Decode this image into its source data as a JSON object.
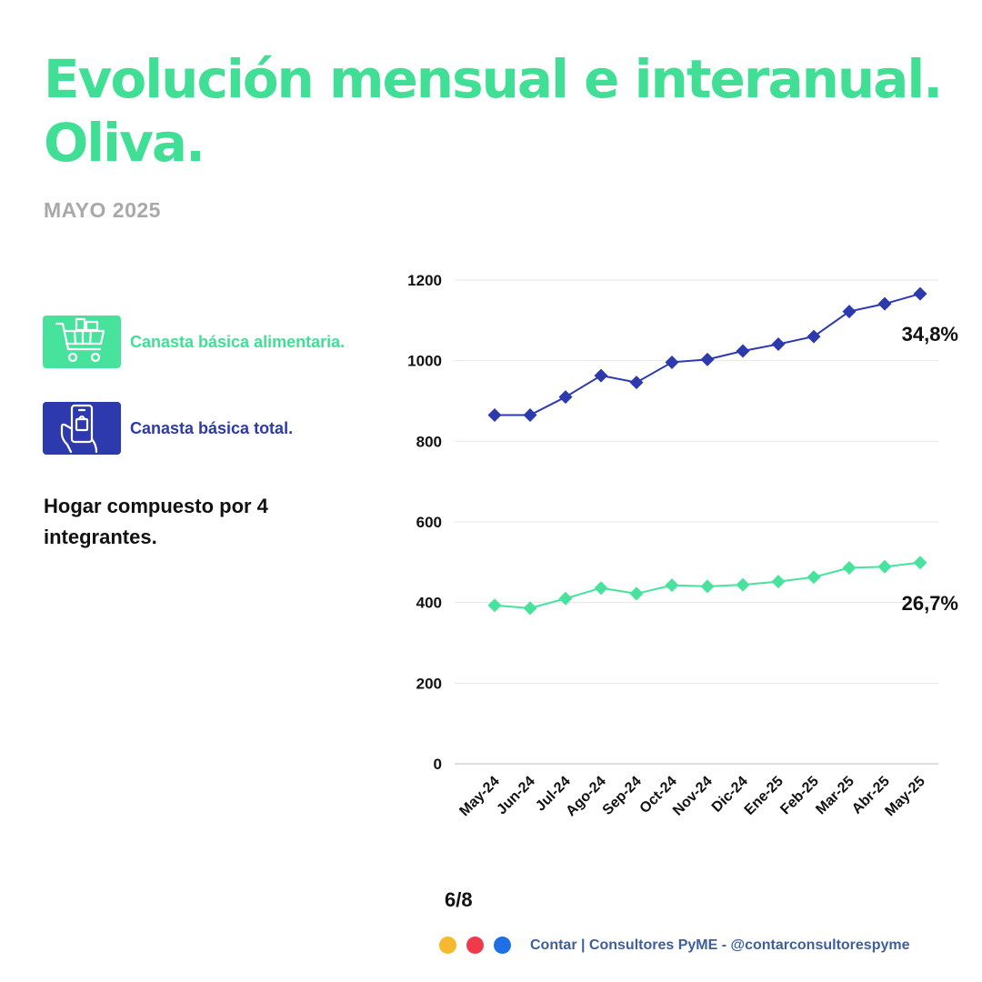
{
  "title": "Evolución mensual e interanual. Oliva.",
  "subtitle": "MAYO 2025",
  "legend": {
    "food_label": "Canasta básica alimentaria.",
    "food_color": "#47e39c",
    "food_icon": "shopping-cart-icon",
    "total_label": "Canasta básica total.",
    "total_color": "#2c3aad",
    "total_icon": "phone-shopping-bag-icon"
  },
  "note": "Hogar compuesto por 4 integrantes.",
  "page": "6/8",
  "footer": {
    "text": "Contar | Consultores PyME - @contarconsultorespyme",
    "dots": [
      "#f5b82e",
      "#ee3a4a",
      "#1f6fe5"
    ]
  },
  "chart_data": {
    "type": "line",
    "categories": [
      "May-24",
      "Jun-24",
      "Jul-24",
      "Ago-24",
      "Sep-24",
      "Oct-24",
      "Nov-24",
      "Dic-24",
      "Ene-25",
      "Feb-25",
      "Mar-25",
      "Abr-25",
      "May-25"
    ],
    "series": [
      {
        "name": "Canasta básica total.",
        "color": "#2c3aad",
        "values": [
          865,
          865,
          910,
          963,
          946,
          996,
          1003,
          1024,
          1041,
          1060,
          1122,
          1141,
          1166
        ],
        "end_label": "34,8%"
      },
      {
        "name": "Canasta básica alimentaria.",
        "color": "#47e39c",
        "values": [
          393,
          386,
          410,
          436,
          422,
          443,
          440,
          444,
          452,
          463,
          486,
          489,
          499
        ],
        "end_label": "26,7%"
      }
    ],
    "ylim": [
      0,
      1200
    ],
    "yticks": [
      0,
      200,
      400,
      600,
      800,
      1000,
      1200
    ],
    "grid": true,
    "marker": "diamond"
  }
}
